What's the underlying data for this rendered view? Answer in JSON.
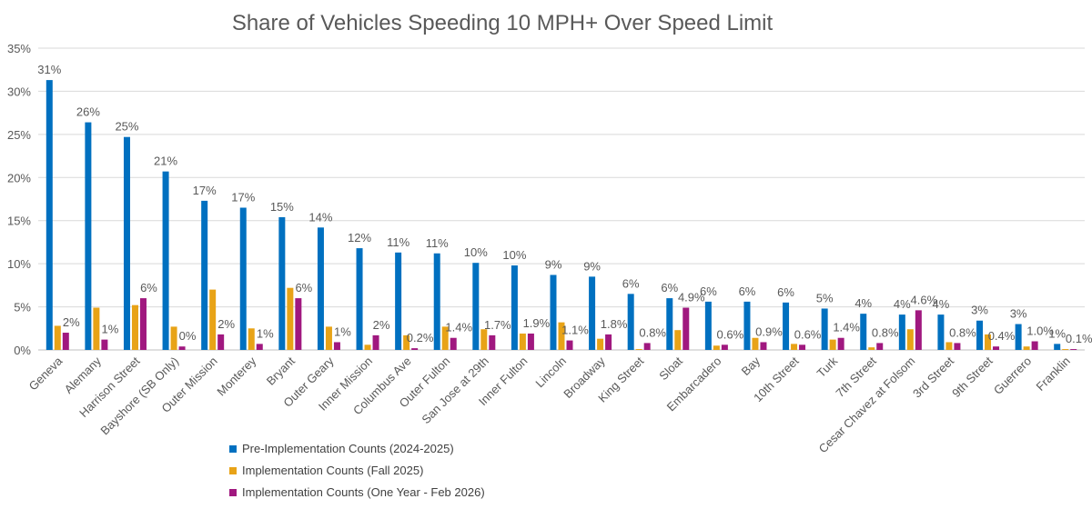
{
  "chart_data": {
    "type": "bar",
    "title": "Share of Vehicles Speeding 10 MPH+ Over Speed Limit",
    "xlabel": "",
    "ylabel": "",
    "ylim": [
      0,
      35
    ],
    "yticks": [
      "0%",
      "5%",
      "10%",
      "15%",
      "20%",
      "25%",
      "30%",
      "35%"
    ],
    "grid": true,
    "legend_position": "bottom-center",
    "categories": [
      "Geneva",
      "Alemany",
      "Harrison Street",
      "Bayshore (SB Only)",
      "Outer Mission",
      "Monterey",
      "Bryant",
      "Outer Geary",
      "Inner Mission",
      "Columbus Ave",
      "Outer Fulton",
      "San Jose at 29th",
      "Inner Fulton",
      "Lincoln",
      "Broadway",
      "King Street",
      "Sloat",
      "Embarcadero",
      "Bay",
      "10th Street",
      "Turk",
      "7th Street",
      "Cesar Chavez at Folsom",
      "3rd Street",
      "9th Street",
      "Guerrero",
      "Franklin"
    ],
    "series": [
      {
        "name": "Pre-Implementation Counts (2024-2025)",
        "color": "#0070c0",
        "values": [
          31.3,
          26.4,
          24.7,
          20.7,
          17.3,
          16.5,
          15.4,
          14.2,
          11.8,
          11.3,
          11.2,
          10.1,
          9.8,
          8.7,
          8.5,
          6.5,
          6.0,
          5.6,
          5.6,
          5.5,
          4.8,
          4.2,
          4.1,
          4.1,
          3.4,
          3.0,
          0.7
        ],
        "labels": [
          "31%",
          "26%",
          "25%",
          "21%",
          "17%",
          "17%",
          "15%",
          "14%",
          "12%",
          "11%",
          "11%",
          "10%",
          "10%",
          "9%",
          "9%",
          "6%",
          "6%",
          "6%",
          "6%",
          "6%",
          "5%",
          "4%",
          "4%",
          "4%",
          "3%",
          "3%",
          "1%"
        ]
      },
      {
        "name": "Implementation Counts (Fall 2025)",
        "color": "#e8a317",
        "values": [
          2.8,
          4.9,
          5.2,
          2.7,
          7.0,
          2.5,
          7.2,
          2.7,
          0.6,
          1.7,
          2.7,
          2.4,
          1.9,
          3.2,
          1.3,
          0.1,
          2.3,
          0.5,
          1.4,
          0.7,
          1.2,
          0.3,
          2.4,
          0.9,
          1.8,
          0.4,
          0.1
        ],
        "labels": [
          "",
          "",
          "",
          "",
          "",
          "",
          "",
          "",
          "",
          "",
          "",
          "",
          "",
          "",
          "",
          "",
          "",
          "",
          "",
          "",
          "",
          "",
          "",
          "",
          "",
          "",
          ""
        ]
      },
      {
        "name": "Implementation Counts (One Year - Feb 2026)",
        "color": "#a0187f",
        "values": [
          2.0,
          1.2,
          6.0,
          0.4,
          1.8,
          0.7,
          6.0,
          0.9,
          1.7,
          0.2,
          1.4,
          1.7,
          1.9,
          1.1,
          1.8,
          0.8,
          4.9,
          0.6,
          0.9,
          0.6,
          1.4,
          0.8,
          4.6,
          0.8,
          0.4,
          1.0,
          0.1
        ],
        "labels": [
          "2%",
          "1%",
          "6%",
          "0%",
          "2%",
          "1%",
          "6%",
          "1%",
          "2%",
          "0.2%",
          "1.4%",
          "1.7%",
          "1.9%",
          "1.1%",
          "1.8%",
          "0.8%",
          "4.9%",
          "0.6%",
          "0.9%",
          "0.6%",
          "1.4%",
          "0.8%",
          "4.6%",
          "0.8%",
          "0.4%",
          "1.0%",
          "0.1%"
        ]
      }
    ]
  }
}
